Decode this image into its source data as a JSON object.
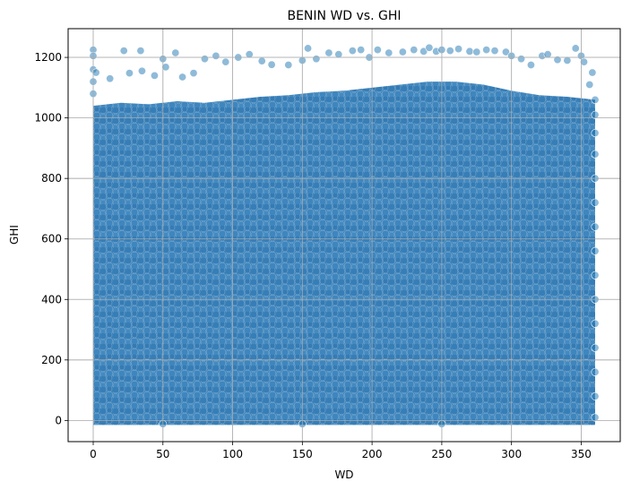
{
  "chart_data": {
    "type": "scatter",
    "title": "BENIN WD vs. GHI",
    "xlabel": "WD",
    "ylabel": "GHI",
    "xlim": [
      -18,
      378
    ],
    "ylim": [
      -70,
      1295
    ],
    "xticks": [
      0,
      50,
      100,
      150,
      200,
      250,
      300,
      350
    ],
    "yticks": [
      0,
      200,
      400,
      600,
      800,
      1000,
      1200
    ],
    "grid": true,
    "legend": "none",
    "marker_color": "#1f77b4",
    "marker_edge_color": "#ffffff",
    "marker_alpha": 0.5,
    "series": [
      {
        "points": [
          [
            0,
            1225
          ],
          [
            0,
            1205
          ],
          [
            0,
            1160
          ],
          [
            0,
            1120
          ],
          [
            0,
            1080
          ],
          [
            2,
            1150
          ],
          [
            22,
            1222
          ],
          [
            34,
            1222
          ],
          [
            12,
            1130
          ],
          [
            26,
            1148
          ],
          [
            35,
            1155
          ],
          [
            44,
            1140
          ],
          [
            50,
            1195
          ],
          [
            52,
            1168
          ],
          [
            59,
            1215
          ],
          [
            64,
            1135
          ],
          [
            72,
            1148
          ],
          [
            80,
            1195
          ],
          [
            88,
            1205
          ],
          [
            95,
            1185
          ],
          [
            104,
            1200
          ],
          [
            112,
            1210
          ],
          [
            121,
            1188
          ],
          [
            128,
            1176
          ],
          [
            140,
            1175
          ],
          [
            150,
            1190
          ],
          [
            154,
            1230
          ],
          [
            160,
            1195
          ],
          [
            169,
            1215
          ],
          [
            176,
            1210
          ],
          [
            186,
            1222
          ],
          [
            192,
            1225
          ],
          [
            198,
            1200
          ],
          [
            204,
            1225
          ],
          [
            212,
            1215
          ],
          [
            222,
            1218
          ],
          [
            230,
            1225
          ],
          [
            237,
            1220
          ],
          [
            241,
            1232
          ],
          [
            246,
            1220
          ],
          [
            250,
            1225
          ],
          [
            256,
            1222
          ],
          [
            262,
            1228
          ],
          [
            270,
            1220
          ],
          [
            275,
            1218
          ],
          [
            282,
            1225
          ],
          [
            288,
            1222
          ],
          [
            296,
            1218
          ],
          [
            300,
            1205
          ],
          [
            307,
            1195
          ],
          [
            314,
            1175
          ],
          [
            322,
            1205
          ],
          [
            326,
            1210
          ],
          [
            333,
            1192
          ],
          [
            340,
            1190
          ],
          [
            346,
            1230
          ],
          [
            350,
            1205
          ],
          [
            352,
            1185
          ],
          [
            358,
            1150
          ],
          [
            356,
            1110
          ],
          [
            360,
            1060
          ],
          [
            360,
            1010
          ],
          [
            360,
            950
          ],
          [
            360,
            880
          ],
          [
            360,
            800
          ],
          [
            360,
            720
          ],
          [
            360,
            640
          ],
          [
            360,
            560
          ],
          [
            360,
            480
          ],
          [
            360,
            400
          ],
          [
            360,
            320
          ],
          [
            360,
            240
          ],
          [
            360,
            160
          ],
          [
            360,
            80
          ],
          [
            360,
            10
          ],
          [
            250,
            -12
          ],
          [
            150,
            -12
          ],
          [
            50,
            -12
          ]
        ]
      }
    ]
  }
}
